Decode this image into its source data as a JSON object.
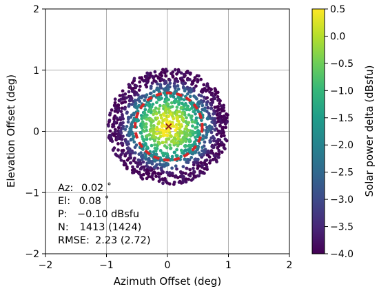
{
  "chart_data": {
    "type": "scatter",
    "xlabel": "Azimuth Offset (deg)",
    "ylabel": "Elevation Offset (deg)",
    "xlim": [
      -2,
      2
    ],
    "ylim": [
      -2,
      2
    ],
    "xticks": [
      -2,
      -1,
      0,
      1,
      2
    ],
    "yticks": [
      -2,
      -1,
      0,
      1,
      2
    ],
    "xtick_labels": [
      "−2",
      "−1",
      "0",
      "1",
      "2"
    ],
    "ytick_labels": [
      "−2",
      "−1",
      "0",
      "1",
      "2"
    ],
    "grid": true,
    "colormap": "viridis",
    "color_range": [
      -4.0,
      0.5
    ],
    "colorbar": {
      "label": "Solar power delta (dBsfu)",
      "ticks": [
        0.5,
        0.0,
        -0.5,
        -1.0,
        -1.5,
        -2.0,
        -2.5,
        -3.0,
        -3.5,
        -4.0
      ],
      "tick_labels": [
        "0.5",
        "0.0",
        "−0.5",
        "−1.0",
        "−1.5",
        "−2.0",
        "−2.5",
        "−3.0",
        "−3.5",
        "−4.0"
      ]
    },
    "beam_center": {
      "x": 0.02,
      "y": 0.08
    },
    "point_cloud": {
      "count_total": 1424,
      "count_used": 1413,
      "center": [
        0.02,
        0.08
      ],
      "radius_x": 1.0,
      "radius_y": 0.95,
      "peak_value": 0.5,
      "edge_value": -4.0
    },
    "circle_radius": 0.55,
    "colors": {
      "circle": "#d62728",
      "marker": "#8b1a1a",
      "grid": "#b0b0b0"
    },
    "stats": [
      {
        "label": "Az:",
        "value": "0.02$^\\circ$",
        "display": "0.02 ˚"
      },
      {
        "label": "El:",
        "value": "0.08˚",
        "display": " 0.08 ˚"
      },
      {
        "label": "P:",
        "value": "−0.10 dBsfu",
        "display": "−0.10 dBsfu"
      },
      {
        "label": "N:",
        "value": "1413 (1424)",
        "display": " 1413 (1424)"
      },
      {
        "label": "RMSE:",
        "value": "2.23 (2.72)",
        "display": "2.23 (2.72)"
      }
    ]
  }
}
